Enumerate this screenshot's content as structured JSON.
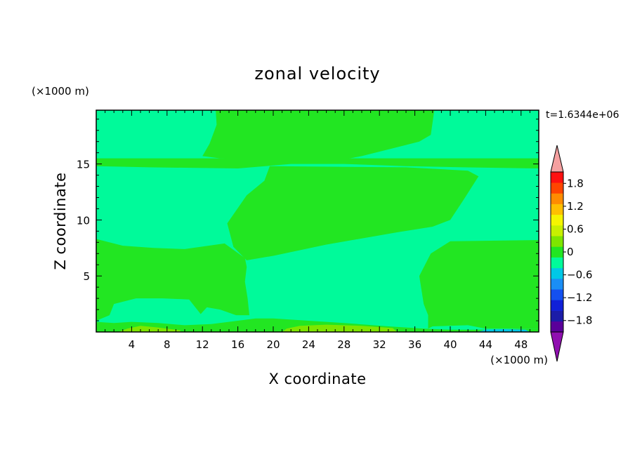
{
  "chart_data": {
    "type": "heatmap",
    "title": "zonal velocity",
    "xlabel": "X coordinate",
    "ylabel": "Z coordinate",
    "x_unit": "(×1000 m)",
    "y_unit": "(×1000 m)",
    "time_label": "t=1.6344e+06",
    "xlim": [
      0,
      50
    ],
    "ylim": [
      0,
      19.8
    ],
    "x_ticks": [
      4,
      8,
      12,
      16,
      20,
      24,
      28,
      32,
      36,
      40,
      44,
      48
    ],
    "y_ticks": [
      5,
      10,
      15
    ],
    "x_tick_labels": [
      "4",
      "8",
      "12",
      "16",
      "20",
      "24",
      "28",
      "32",
      "36",
      "40",
      "44",
      "48"
    ],
    "y_tick_labels": [
      "5",
      "10",
      "15"
    ],
    "colorbar": {
      "levels": [
        -2.1,
        -1.8,
        -1.5,
        -1.2,
        -0.9,
        -0.6,
        -0.3,
        0,
        0.3,
        0.6,
        0.9,
        1.2,
        1.5,
        1.8,
        2.1
      ],
      "colors": [
        "#5a009a",
        "#1c1ca8",
        "#1020d8",
        "#1450f0",
        "#1a8ef5",
        "#00c8e6",
        "#00fa9a",
        "#22e622",
        "#7ee600",
        "#c8f000",
        "#f5f500",
        "#ffc000",
        "#ff8c00",
        "#ff4500",
        "#ff1010"
      ],
      "under_color": "#9010b0",
      "over_color": "#f5a0a0",
      "tick_values": [
        1.8,
        1.2,
        0.6,
        0,
        -0.6,
        -1.2,
        -1.8
      ],
      "tick_labels": [
        "1.8",
        "1.2",
        "0.6",
        "0",
        "−0.6",
        "−1.2",
        "−1.8"
      ]
    },
    "field_colors": {
      "background": "#00fa9a",
      "positive": "#22e622",
      "light_positive": "#7ee600",
      "negative": "#00e8c8"
    },
    "regions": [
      {
        "name": "upper-left-positive",
        "level": 0.15,
        "points": [
          [
            13.5,
            19.8
          ],
          [
            38.2,
            19.8
          ],
          [
            37.8,
            17.6
          ],
          [
            36.5,
            17.0
          ],
          [
            34,
            16.5
          ],
          [
            30,
            15.7
          ],
          [
            28,
            15.4
          ],
          [
            20,
            15.3
          ],
          [
            14,
            15.5
          ],
          [
            12,
            15.7
          ],
          [
            12.8,
            16.8
          ],
          [
            13.6,
            18.5
          ]
        ]
      },
      {
        "name": "z15-positive-band",
        "level": 0.15,
        "points": [
          [
            0,
            15.5
          ],
          [
            50,
            15.5
          ],
          [
            50,
            14.6
          ],
          [
            41.5,
            14.7
          ],
          [
            35,
            14.8
          ],
          [
            28,
            15.0
          ],
          [
            22,
            15.0
          ],
          [
            16,
            14.6
          ],
          [
            6,
            14.7
          ],
          [
            0,
            14.8
          ]
        ]
      },
      {
        "name": "central-diagonal-positive",
        "level": 0.15,
        "points": [
          [
            19.6,
            14.8
          ],
          [
            35,
            14.7
          ],
          [
            42,
            14.4
          ],
          [
            43.2,
            13.9
          ],
          [
            41.5,
            11.8
          ],
          [
            40,
            10.0
          ],
          [
            38,
            9.4
          ],
          [
            34,
            8.9
          ],
          [
            26,
            7.8
          ],
          [
            20,
            6.8
          ],
          [
            17,
            6.4
          ],
          [
            15.5,
            7.6
          ],
          [
            14.8,
            9.7
          ],
          [
            17,
            12.2
          ],
          [
            19,
            13.5
          ]
        ]
      },
      {
        "name": "left-lower-positive",
        "level": 0.15,
        "points": [
          [
            0,
            8.3
          ],
          [
            3,
            7.7
          ],
          [
            6.5,
            7.5
          ],
          [
            10,
            7.4
          ],
          [
            14.5,
            7.9
          ],
          [
            16.8,
            6.6
          ],
          [
            17,
            5.8
          ],
          [
            16.8,
            4.5
          ],
          [
            17.1,
            3.0
          ],
          [
            17.3,
            1.5
          ],
          [
            15.8,
            1.5
          ],
          [
            14,
            2.0
          ],
          [
            12.5,
            2.2
          ],
          [
            11.8,
            1.6
          ],
          [
            10.5,
            2.9
          ],
          [
            7.5,
            3.0
          ],
          [
            4.5,
            3.0
          ],
          [
            2.0,
            2.5
          ],
          [
            1.5,
            1.5
          ],
          [
            0,
            1.0
          ]
        ]
      },
      {
        "name": "right-lower-positive",
        "level": 0.15,
        "points": [
          [
            37.5,
            0.3
          ],
          [
            37.5,
            1.5
          ],
          [
            37.0,
            2.5
          ],
          [
            36.5,
            5
          ],
          [
            37.8,
            7.0
          ],
          [
            40,
            8.1
          ],
          [
            50,
            8.2
          ],
          [
            50,
            0.3
          ],
          [
            44,
            0.3
          ],
          [
            42,
            0.6
          ],
          [
            38,
            0.5
          ]
        ]
      },
      {
        "name": "surface-positive-strip",
        "level": 0.15,
        "points": [
          [
            0,
            0
          ],
          [
            50,
            0
          ],
          [
            50,
            0.3
          ],
          [
            44,
            0.2
          ],
          [
            40,
            0.2
          ],
          [
            37,
            0.3
          ],
          [
            33,
            0.5
          ],
          [
            28,
            0.8
          ],
          [
            24,
            1.0
          ],
          [
            20,
            1.2
          ],
          [
            18,
            1.2
          ],
          [
            16,
            1.0
          ],
          [
            13,
            0.7
          ],
          [
            10,
            0.6
          ],
          [
            7,
            0.8
          ],
          [
            4,
            0.9
          ],
          [
            2,
            0.8
          ],
          [
            0,
            0.9
          ]
        ]
      },
      {
        "name": "surface-light-strip-left",
        "level": 0.45,
        "points": [
          [
            2.5,
            0
          ],
          [
            9.5,
            0
          ],
          [
            9.5,
            0.15
          ],
          [
            7,
            0.4
          ],
          [
            5,
            0.55
          ],
          [
            3.5,
            0.3
          ]
        ]
      },
      {
        "name": "surface-light-strip-center",
        "level": 0.45,
        "points": [
          [
            21,
            0
          ],
          [
            34,
            0
          ],
          [
            33.5,
            0.35
          ],
          [
            30,
            0.55
          ],
          [
            26,
            0.65
          ],
          [
            23,
            0.55
          ],
          [
            21.5,
            0.3
          ]
        ]
      },
      {
        "name": "surface-negative-strip",
        "level": -0.4,
        "points": [
          [
            43,
            0
          ],
          [
            49,
            0
          ],
          [
            48.5,
            0.2
          ],
          [
            46,
            0.25
          ],
          [
            44,
            0.2
          ]
        ]
      }
    ]
  }
}
